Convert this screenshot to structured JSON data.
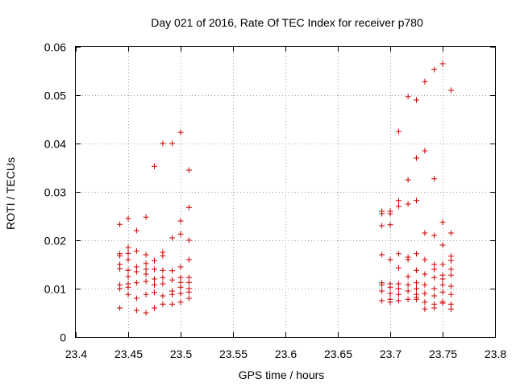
{
  "chart_data": {
    "type": "scatter",
    "title": "Day 021 of 2016, Rate Of TEC Index for receiver p780",
    "xlabel": "GPS time / hours",
    "ylabel": "ROTI / TECUs",
    "xlim": [
      23.4,
      23.8
    ],
    "ylim": [
      0,
      0.06
    ],
    "xticks": [
      23.4,
      23.45,
      23.5,
      23.55,
      23.6,
      23.65,
      23.7,
      23.75,
      23.8
    ],
    "xtick_labels": [
      "23.4",
      "23.45",
      "23.5",
      "23.55",
      "23.6",
      "23.65",
      "23.7",
      "23.75",
      "23.8"
    ],
    "yticks": [
      0,
      0.01,
      0.02,
      0.03,
      0.04,
      0.05,
      0.06
    ],
    "ytick_labels": [
      "0",
      "0.01",
      "0.02",
      "0.03",
      "0.04",
      "0.05",
      "0.06"
    ],
    "grid": true,
    "marker": "+",
    "marker_color": "#cc0000",
    "series": [
      {
        "name": "ROTI",
        "points": [
          [
            23.442,
            0.0233
          ],
          [
            23.442,
            0.0172
          ],
          [
            23.442,
            0.0168
          ],
          [
            23.442,
            0.015
          ],
          [
            23.442,
            0.0141
          ],
          [
            23.442,
            0.0108
          ],
          [
            23.442,
            0.01
          ],
          [
            23.442,
            0.006
          ],
          [
            23.45,
            0.0245
          ],
          [
            23.45,
            0.0185
          ],
          [
            23.45,
            0.0173
          ],
          [
            23.45,
            0.016
          ],
          [
            23.45,
            0.0138
          ],
          [
            23.45,
            0.0125
          ],
          [
            23.45,
            0.011
          ],
          [
            23.45,
            0.0103
          ],
          [
            23.45,
            0.0088
          ],
          [
            23.458,
            0.022
          ],
          [
            23.458,
            0.0178
          ],
          [
            23.458,
            0.0145
          ],
          [
            23.458,
            0.0135
          ],
          [
            23.458,
            0.0112
          ],
          [
            23.458,
            0.008
          ],
          [
            23.458,
            0.0055
          ],
          [
            23.467,
            0.0248
          ],
          [
            23.467,
            0.017
          ],
          [
            23.467,
            0.0152
          ],
          [
            23.467,
            0.014
          ],
          [
            23.467,
            0.013
          ],
          [
            23.467,
            0.0115
          ],
          [
            23.467,
            0.0088
          ],
          [
            23.467,
            0.005
          ],
          [
            23.475,
            0.0353
          ],
          [
            23.475,
            0.0158
          ],
          [
            23.475,
            0.014
          ],
          [
            23.475,
            0.012
          ],
          [
            23.475,
            0.0108
          ],
          [
            23.475,
            0.0092
          ],
          [
            23.475,
            0.006
          ],
          [
            23.483,
            0.04
          ],
          [
            23.483,
            0.0175
          ],
          [
            23.483,
            0.0168
          ],
          [
            23.483,
            0.0138
          ],
          [
            23.483,
            0.0123
          ],
          [
            23.483,
            0.011
          ],
          [
            23.483,
            0.0085
          ],
          [
            23.483,
            0.0068
          ],
          [
            23.492,
            0.04
          ],
          [
            23.492,
            0.0205
          ],
          [
            23.492,
            0.0137
          ],
          [
            23.492,
            0.0118
          ],
          [
            23.492,
            0.0095
          ],
          [
            23.492,
            0.0088
          ],
          [
            23.492,
            0.0068
          ],
          [
            23.5,
            0.0423
          ],
          [
            23.5,
            0.024
          ],
          [
            23.5,
            0.0213
          ],
          [
            23.5,
            0.0145
          ],
          [
            23.5,
            0.0123
          ],
          [
            23.5,
            0.0113
          ],
          [
            23.5,
            0.0103
          ],
          [
            23.5,
            0.009
          ],
          [
            23.5,
            0.0072
          ],
          [
            23.508,
            0.0345
          ],
          [
            23.508,
            0.0268
          ],
          [
            23.508,
            0.02
          ],
          [
            23.508,
            0.016
          ],
          [
            23.508,
            0.0123
          ],
          [
            23.508,
            0.0113
          ],
          [
            23.508,
            0.01
          ],
          [
            23.508,
            0.0093
          ],
          [
            23.508,
            0.008
          ],
          [
            23.692,
            0.026
          ],
          [
            23.692,
            0.0255
          ],
          [
            23.692,
            0.023
          ],
          [
            23.692,
            0.017
          ],
          [
            23.692,
            0.0112
          ],
          [
            23.692,
            0.0108
          ],
          [
            23.692,
            0.0095
          ],
          [
            23.692,
            0.0075
          ],
          [
            23.7,
            0.026
          ],
          [
            23.7,
            0.0255
          ],
          [
            23.7,
            0.0232
          ],
          [
            23.7,
            0.016
          ],
          [
            23.7,
            0.011
          ],
          [
            23.7,
            0.0103
          ],
          [
            23.7,
            0.009
          ],
          [
            23.7,
            0.0078
          ],
          [
            23.7,
            0.0072
          ],
          [
            23.708,
            0.0425
          ],
          [
            23.708,
            0.0282
          ],
          [
            23.708,
            0.027
          ],
          [
            23.708,
            0.0172
          ],
          [
            23.708,
            0.0143
          ],
          [
            23.708,
            0.011
          ],
          [
            23.708,
            0.01
          ],
          [
            23.708,
            0.0088
          ],
          [
            23.708,
            0.0075
          ],
          [
            23.717,
            0.0497
          ],
          [
            23.717,
            0.0325
          ],
          [
            23.717,
            0.0275
          ],
          [
            23.717,
            0.0165
          ],
          [
            23.717,
            0.016
          ],
          [
            23.717,
            0.0125
          ],
          [
            23.717,
            0.0108
          ],
          [
            23.717,
            0.0095
          ],
          [
            23.717,
            0.0078
          ],
          [
            23.725,
            0.049
          ],
          [
            23.725,
            0.037
          ],
          [
            23.725,
            0.0282
          ],
          [
            23.725,
            0.0172
          ],
          [
            23.725,
            0.0138
          ],
          [
            23.725,
            0.0112
          ],
          [
            23.725,
            0.01
          ],
          [
            23.725,
            0.0088
          ],
          [
            23.725,
            0.0082
          ],
          [
            23.725,
            0.0078
          ],
          [
            23.733,
            0.0528
          ],
          [
            23.733,
            0.0385
          ],
          [
            23.733,
            0.0215
          ],
          [
            23.733,
            0.016
          ],
          [
            23.733,
            0.013
          ],
          [
            23.733,
            0.0108
          ],
          [
            23.733,
            0.009
          ],
          [
            23.733,
            0.0072
          ],
          [
            23.733,
            0.0058
          ],
          [
            23.742,
            0.0553
          ],
          [
            23.742,
            0.0327
          ],
          [
            23.742,
            0.021
          ],
          [
            23.742,
            0.015
          ],
          [
            23.742,
            0.014
          ],
          [
            23.742,
            0.0123
          ],
          [
            23.742,
            0.01
          ],
          [
            23.742,
            0.0085
          ],
          [
            23.742,
            0.0068
          ],
          [
            23.742,
            0.006
          ],
          [
            23.75,
            0.0565
          ],
          [
            23.75,
            0.0237
          ],
          [
            23.75,
            0.019
          ],
          [
            23.75,
            0.015
          ],
          [
            23.75,
            0.0128
          ],
          [
            23.75,
            0.012
          ],
          [
            23.75,
            0.0108
          ],
          [
            23.75,
            0.0093
          ],
          [
            23.75,
            0.0073
          ],
          [
            23.75,
            0.007
          ],
          [
            23.758,
            0.051
          ],
          [
            23.758,
            0.0215
          ],
          [
            23.758,
            0.0167
          ],
          [
            23.758,
            0.0158
          ],
          [
            23.758,
            0.014
          ],
          [
            23.758,
            0.0128
          ],
          [
            23.758,
            0.0105
          ],
          [
            23.758,
            0.0088
          ],
          [
            23.758,
            0.0068
          ],
          [
            23.758,
            0.0058
          ]
        ]
      }
    ]
  }
}
